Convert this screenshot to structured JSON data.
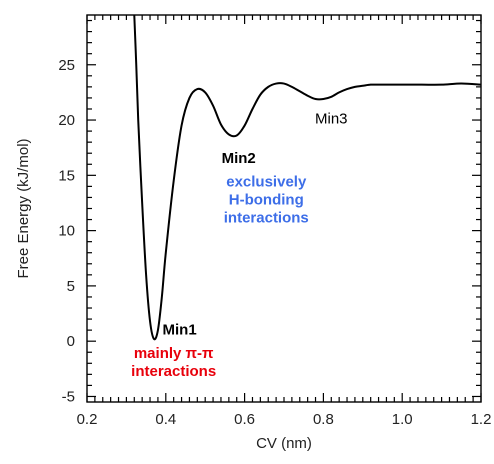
{
  "chart_data": {
    "type": "line",
    "title": "",
    "xlabel": "CV (nm)",
    "ylabel": "Free Energy (kJ/mol)",
    "xlim": [
      0.2,
      1.2
    ],
    "ylim": [
      -5.5,
      29.5
    ],
    "x_ticks": [
      0.2,
      0.4,
      0.6,
      0.8,
      1.0,
      1.2
    ],
    "x_tick_labels": [
      "0.2",
      "0.4",
      "0.6",
      "0.8",
      "1.0",
      "1.2"
    ],
    "y_ticks": [
      -5,
      0,
      5,
      10,
      15,
      20,
      25
    ],
    "y_tick_labels": [
      "-5",
      "0",
      "5",
      "10",
      "15",
      "20",
      "25"
    ],
    "grid": false,
    "line_color": "#000000",
    "series": [
      {
        "x": [
          0.32,
          0.325,
          0.33,
          0.34,
          0.35,
          0.36,
          0.37,
          0.38,
          0.39,
          0.4,
          0.42,
          0.44,
          0.46,
          0.48,
          0.5,
          0.52,
          0.54,
          0.56,
          0.58,
          0.6,
          0.62,
          0.64,
          0.66,
          0.68,
          0.7,
          0.72,
          0.74,
          0.76,
          0.78,
          0.8,
          0.82,
          0.84,
          0.86,
          0.88,
          0.9,
          0.92,
          0.94,
          0.96,
          0.98,
          1.0,
          1.05,
          1.1,
          1.15,
          1.2
        ],
        "y": [
          29.5,
          25.0,
          20.0,
          12.5,
          6.0,
          1.8,
          0.2,
          1.0,
          4.0,
          8.0,
          14.5,
          19.5,
          22.0,
          22.8,
          22.5,
          21.3,
          19.6,
          18.7,
          18.6,
          19.5,
          21.0,
          22.3,
          23.0,
          23.3,
          23.3,
          23.0,
          22.6,
          22.2,
          21.9,
          21.9,
          22.1,
          22.5,
          22.8,
          23.0,
          23.1,
          23.2,
          23.2,
          23.2,
          23.2,
          23.2,
          23.2,
          23.2,
          23.3,
          23.2
        ]
      }
    ],
    "annotations": [
      {
        "lines": [
          "Min1"
        ],
        "color": "#000000",
        "style": "bold",
        "x": 0.435,
        "y": 0.6
      },
      {
        "lines": [
          "mainly π-π",
          "interactions"
        ],
        "color": "#e8000b",
        "style": "bold",
        "x": 0.42,
        "y": -1.5
      },
      {
        "lines": [
          "Min2"
        ],
        "color": "#000000",
        "style": "bold",
        "x": 0.585,
        "y": 16.1
      },
      {
        "lines": [
          "exclusively",
          "H-bonding",
          "interactions"
        ],
        "color": "#3d6ee8",
        "style": "bold",
        "x": 0.655,
        "y": 14.0
      },
      {
        "lines": [
          "Min3"
        ],
        "color": "#000000",
        "style": "plain",
        "x": 0.82,
        "y": 19.7
      }
    ]
  }
}
